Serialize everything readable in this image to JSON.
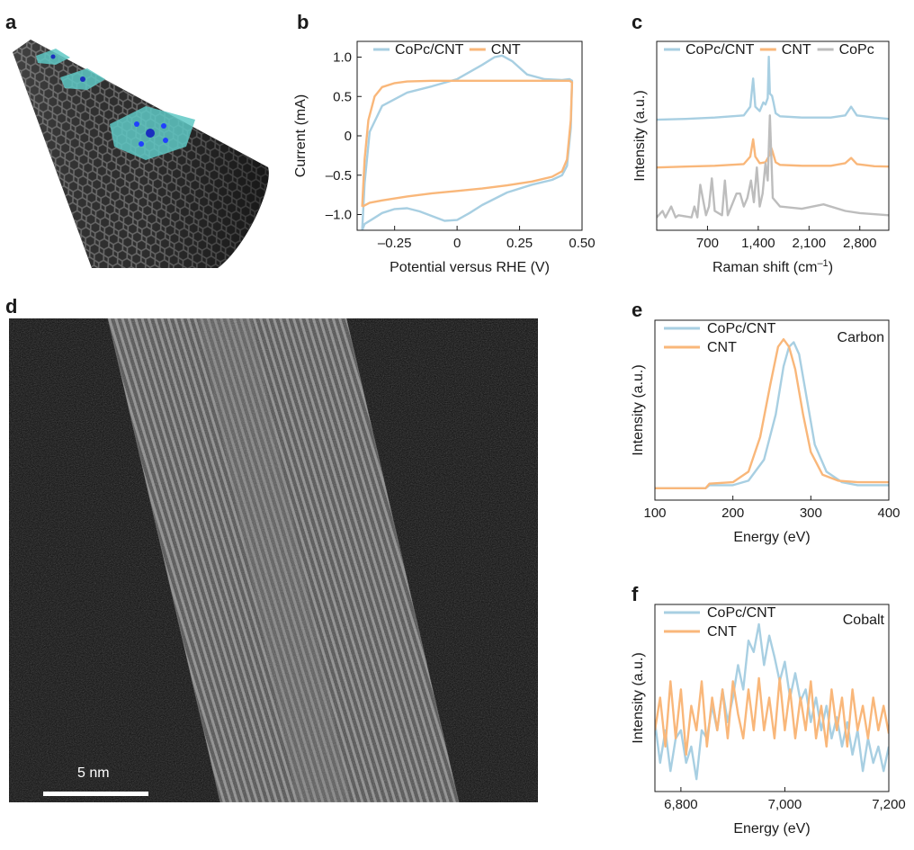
{
  "panels": {
    "a": {
      "letter": "a"
    },
    "b": {
      "letter": "b"
    },
    "c": {
      "letter": "c"
    },
    "d": {
      "letter": "d",
      "scale_bar": "5 nm"
    },
    "e": {
      "letter": "e",
      "annotation": "Carbon"
    },
    "f": {
      "letter": "f",
      "annotation": "Cobalt"
    }
  },
  "colors": {
    "CoPc/CNT": "#a8cfe2",
    "CNT": "#f9b77a",
    "CoPc": "#bdbdbd"
  },
  "chart_data": [
    {
      "id": "b",
      "type": "line",
      "xlabel": "Potential versus RHE (V)",
      "ylabel": "Current (mA)",
      "xlim": [
        -0.4,
        0.5
      ],
      "ylim": [
        -1.2,
        1.2
      ],
      "xticks": [
        -0.25,
        0,
        0.25,
        0.5
      ],
      "xtick_labels": [
        "–0.25",
        "0",
        "0.25",
        "0.50"
      ],
      "yticks": [
        1.0,
        0.5,
        0,
        -0.5,
        -1.0
      ],
      "ytick_labels": [
        "1.0",
        "0.5",
        "0",
        "–0.5",
        "–1.0"
      ],
      "legend": [
        "CoPc/CNT",
        "CNT"
      ],
      "series": [
        {
          "name": "CoPc/CNT",
          "x": [
            -0.38,
            -0.37,
            -0.35,
            -0.3,
            -0.2,
            -0.1,
            0,
            0.1,
            0.15,
            0.18,
            0.22,
            0.28,
            0.35,
            0.42,
            0.45,
            0.46,
            0.455,
            0.44,
            0.42,
            0.38,
            0.3,
            0.2,
            0.1,
            0.05,
            0,
            -0.05,
            -0.1,
            -0.15,
            -0.2,
            -0.25,
            -0.3,
            -0.34,
            -0.37,
            -0.38
          ],
          "y": [
            -1.2,
            -0.6,
            0.05,
            0.38,
            0.55,
            0.63,
            0.72,
            0.9,
            1.0,
            1.02,
            0.95,
            0.78,
            0.72,
            0.71,
            0.72,
            0.7,
            0.1,
            -0.38,
            -0.5,
            -0.56,
            -0.62,
            -0.72,
            -0.88,
            -0.98,
            -1.07,
            -1.08,
            -1.02,
            -0.96,
            -0.92,
            -0.93,
            -0.98,
            -1.06,
            -1.12,
            -1.2
          ]
        },
        {
          "name": "CNT",
          "x": [
            -0.38,
            -0.37,
            -0.355,
            -0.33,
            -0.3,
            -0.25,
            -0.2,
            -0.1,
            0,
            0.1,
            0.2,
            0.3,
            0.4,
            0.45,
            0.46,
            0.455,
            0.44,
            0.42,
            0.38,
            0.3,
            0.2,
            0.1,
            0,
            -0.1,
            -0.2,
            -0.3,
            -0.35,
            -0.38
          ],
          "y": [
            -0.9,
            -0.3,
            0.2,
            0.5,
            0.62,
            0.67,
            0.69,
            0.7,
            0.7,
            0.7,
            0.7,
            0.7,
            0.7,
            0.7,
            0.68,
            0.2,
            -0.3,
            -0.45,
            -0.52,
            -0.58,
            -0.63,
            -0.67,
            -0.7,
            -0.73,
            -0.77,
            -0.82,
            -0.85,
            -0.9
          ]
        }
      ]
    },
    {
      "id": "c",
      "type": "line",
      "xlabel": "Raman shift (cm–1)",
      "ylabel": "Intensity (a.u.)",
      "xlim": [
        0,
        3200
      ],
      "xticks": [
        700,
        1400,
        2100,
        2800
      ],
      "xtick_labels": [
        "700",
        "1,400",
        "2,100",
        "2,800"
      ],
      "legend": [
        "CoPc/CNT",
        "CNT",
        "CoPc"
      ],
      "series": [
        {
          "name": "CoPc/CNT",
          "offset": 2.3,
          "x": [
            0,
            400,
            800,
            1200,
            1290,
            1330,
            1360,
            1420,
            1470,
            1500,
            1530,
            1545,
            1560,
            1590,
            1610,
            1640,
            1700,
            2000,
            2400,
            2600,
            2680,
            2760,
            3000,
            3200
          ],
          "y": [
            0,
            0.02,
            0.05,
            0.1,
            0.3,
            0.95,
            0.3,
            0.2,
            0.4,
            0.35,
            0.5,
            1.45,
            0.6,
            0.55,
            0.4,
            0.15,
            0.08,
            0.05,
            0.05,
            0.1,
            0.3,
            0.1,
            0.05,
            0.02
          ]
        },
        {
          "name": "CNT",
          "offset": 1.2,
          "x": [
            0,
            400,
            800,
            1200,
            1290,
            1330,
            1360,
            1420,
            1500,
            1560,
            1580,
            1600,
            1640,
            1700,
            2000,
            2400,
            2600,
            2680,
            2760,
            3000,
            3200
          ],
          "y": [
            0,
            0.02,
            0.04,
            0.08,
            0.25,
            0.65,
            0.25,
            0.1,
            0.12,
            0.3,
            0.45,
            0.35,
            0.12,
            0.06,
            0.04,
            0.04,
            0.1,
            0.22,
            0.08,
            0.03,
            0.02
          ]
        },
        {
          "name": "CoPc",
          "offset": 0,
          "x": [
            0,
            80,
            120,
            200,
            260,
            300,
            480,
            520,
            560,
            600,
            680,
            720,
            760,
            800,
            900,
            940,
            980,
            1100,
            1150,
            1200,
            1250,
            1300,
            1340,
            1380,
            1420,
            1460,
            1500,
            1530,
            1560,
            1600,
            1700,
            2000,
            2300,
            2600,
            2800,
            3200
          ],
          "y": [
            0.05,
            0.2,
            0.05,
            0.3,
            0.05,
            0.1,
            0.05,
            0.3,
            0.05,
            0.8,
            0.1,
            0.3,
            0.95,
            0.2,
            0.1,
            0.9,
            0.1,
            0.6,
            0.6,
            0.3,
            0.5,
            0.9,
            0.4,
            1.2,
            0.3,
            0.6,
            1.3,
            0.9,
            2.4,
            0.5,
            0.3,
            0.25,
            0.35,
            0.2,
            0.15,
            0.1
          ]
        }
      ]
    },
    {
      "id": "e",
      "type": "line",
      "xlabel": "Energy (eV)",
      "ylabel": "Intensity (a.u.)",
      "xlim": [
        100,
        400
      ],
      "xticks": [
        100,
        200,
        300,
        400
      ],
      "xtick_labels": [
        "100",
        "200",
        "300",
        "400"
      ],
      "legend": [
        "CoPc/CNT",
        "CNT"
      ],
      "series": [
        {
          "name": "CoPc/CNT",
          "x": [
            100,
            165,
            170,
            200,
            220,
            240,
            255,
            265,
            272,
            278,
            285,
            295,
            305,
            320,
            340,
            360,
            400
          ],
          "y": [
            0.01,
            0.01,
            0.03,
            0.03,
            0.06,
            0.2,
            0.5,
            0.82,
            0.95,
            0.98,
            0.9,
            0.6,
            0.3,
            0.12,
            0.05,
            0.03,
            0.03
          ]
        },
        {
          "name": "CNT",
          "x": [
            100,
            165,
            170,
            200,
            220,
            235,
            248,
            258,
            265,
            272,
            280,
            290,
            300,
            315,
            335,
            360,
            400
          ],
          "y": [
            0.01,
            0.01,
            0.04,
            0.05,
            0.12,
            0.35,
            0.7,
            0.95,
            1.0,
            0.95,
            0.8,
            0.5,
            0.25,
            0.1,
            0.06,
            0.05,
            0.05
          ]
        }
      ]
    },
    {
      "id": "f",
      "type": "line",
      "xlabel": "Energy (eV)",
      "ylabel": "Intensity (a.u.)",
      "xlim": [
        6750,
        7200
      ],
      "xticks": [
        6800,
        7000,
        7200
      ],
      "xtick_labels": [
        "6,800",
        "7,000",
        "7,200"
      ],
      "legend": [
        "CoPc/CNT",
        "CNT"
      ],
      "series": [
        {
          "name": "CoPc/CNT",
          "x": [
            6750,
            6760,
            6770,
            6780,
            6790,
            6800,
            6810,
            6820,
            6830,
            6840,
            6850,
            6860,
            6870,
            6880,
            6890,
            6900,
            6910,
            6920,
            6930,
            6940,
            6950,
            6960,
            6970,
            6980,
            6990,
            7000,
            7010,
            7020,
            7030,
            7040,
            7050,
            7060,
            7070,
            7080,
            7090,
            7100,
            7110,
            7120,
            7130,
            7140,
            7150,
            7160,
            7170,
            7180,
            7190,
            7200
          ],
          "y": [
            0.35,
            0.1,
            0.3,
            0.05,
            0.25,
            0.3,
            0.1,
            0.2,
            0.0,
            0.3,
            0.25,
            0.45,
            0.3,
            0.55,
            0.35,
            0.5,
            0.7,
            0.55,
            0.85,
            0.78,
            0.95,
            0.7,
            0.88,
            0.75,
            0.6,
            0.72,
            0.5,
            0.65,
            0.48,
            0.55,
            0.35,
            0.5,
            0.3,
            0.45,
            0.25,
            0.38,
            0.2,
            0.35,
            0.15,
            0.3,
            0.05,
            0.25,
            0.1,
            0.2,
            0.05,
            0.2
          ]
        },
        {
          "name": "CNT",
          "x": [
            6750,
            6760,
            6770,
            6780,
            6790,
            6800,
            6810,
            6820,
            6830,
            6840,
            6850,
            6860,
            6870,
            6880,
            6890,
            6900,
            6910,
            6920,
            6930,
            6940,
            6950,
            6960,
            6970,
            6980,
            6990,
            7000,
            7010,
            7020,
            7030,
            7040,
            7050,
            7060,
            7070,
            7080,
            7090,
            7100,
            7110,
            7120,
            7130,
            7140,
            7150,
            7160,
            7170,
            7180,
            7190,
            7200
          ],
          "y": [
            0.3,
            0.5,
            0.2,
            0.6,
            0.25,
            0.55,
            0.15,
            0.45,
            0.3,
            0.6,
            0.2,
            0.5,
            0.3,
            0.55,
            0.25,
            0.6,
            0.4,
            0.25,
            0.55,
            0.3,
            0.62,
            0.3,
            0.5,
            0.25,
            0.62,
            0.3,
            0.55,
            0.25,
            0.5,
            0.3,
            0.6,
            0.25,
            0.45,
            0.2,
            0.55,
            0.3,
            0.5,
            0.2,
            0.55,
            0.3,
            0.45,
            0.25,
            0.5,
            0.3,
            0.45,
            0.28
          ]
        }
      ]
    }
  ]
}
